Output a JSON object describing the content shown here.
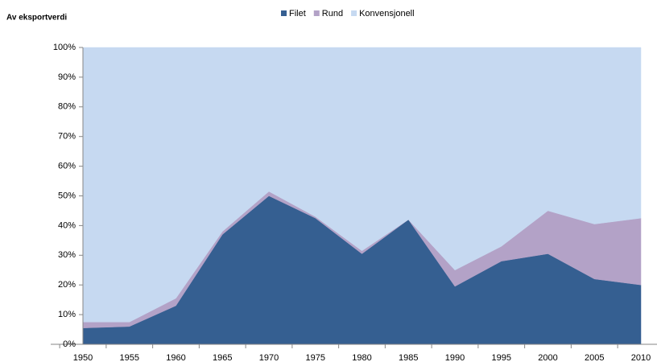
{
  "chart_data": {
    "type": "stacked_area",
    "y_axis_label": "Av eksportverdi",
    "categories": [
      "1950",
      "1955",
      "1960",
      "1965",
      "1970",
      "1975",
      "1980",
      "1985",
      "1990",
      "1995",
      "2000",
      "2005",
      "2010"
    ],
    "series": [
      {
        "name": "Filet",
        "color": "#355f91",
        "values": [
          5.5,
          6,
          13,
          37,
          50,
          42.5,
          30.5,
          42,
          19.5,
          28,
          30.5,
          22,
          20
        ]
      },
      {
        "name": "Rund",
        "color": "#b3a2c7",
        "values": [
          2,
          1.5,
          2.5,
          1,
          1.5,
          0.5,
          1,
          0,
          5.5,
          5,
          14.5,
          18.5,
          22.5
        ]
      },
      {
        "name": "Konvensjonell",
        "color": "#c6d9f1",
        "values": [
          92.5,
          92.5,
          84.5,
          62,
          48.5,
          57,
          68.5,
          58,
          75,
          67,
          55,
          59.5,
          57.5
        ]
      }
    ],
    "ylim": [
      0,
      100
    ],
    "yticks": [
      {
        "value": 0,
        "label": "0%"
      },
      {
        "value": 10,
        "label": "10%"
      },
      {
        "value": 20,
        "label": "20%"
      },
      {
        "value": 30,
        "label": "30%"
      },
      {
        "value": 40,
        "label": "40%"
      },
      {
        "value": 50,
        "label": "50%"
      },
      {
        "value": 60,
        "label": "60%"
      },
      {
        "value": 70,
        "label": "70%"
      },
      {
        "value": 80,
        "label": "80%"
      },
      {
        "value": 90,
        "label": "90%"
      },
      {
        "value": 100,
        "label": "100%"
      }
    ],
    "legend": "top",
    "grid": false
  }
}
